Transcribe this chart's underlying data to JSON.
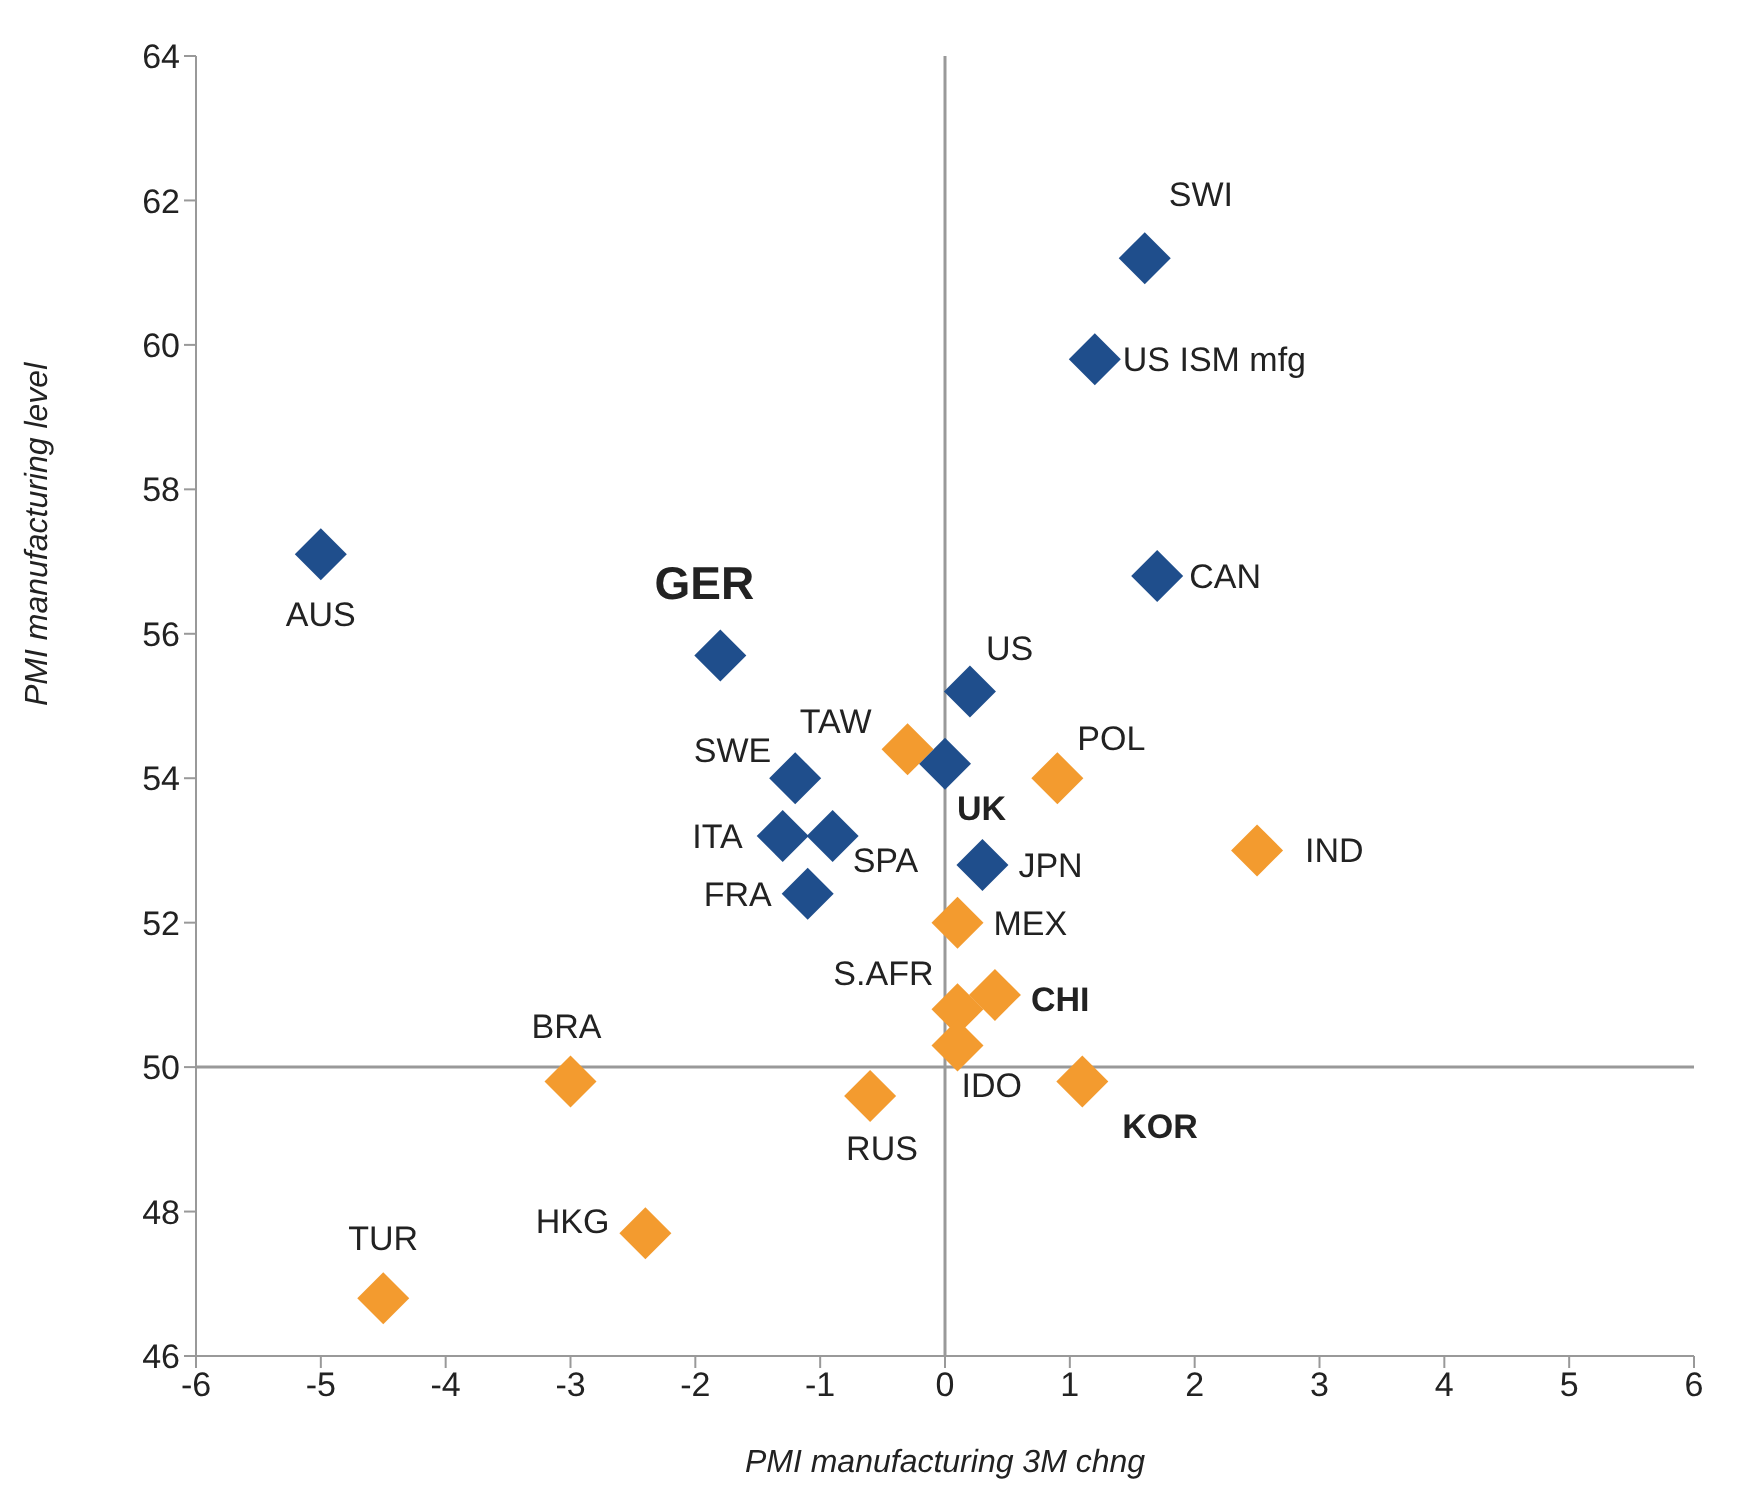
{
  "chart_data": {
    "type": "scatter",
    "xlabel": "PMI manufacturing 3M chng",
    "ylabel": "PMI manufacturing level",
    "xlim": [
      -6,
      6
    ],
    "xticks": [
      -6,
      -5,
      -4,
      -3,
      -2,
      -1,
      0,
      1,
      2,
      3,
      4,
      5,
      6
    ],
    "ylim": [
      46,
      64
    ],
    "yticks": [
      46,
      48,
      50,
      52,
      54,
      56,
      58,
      60,
      62,
      64
    ],
    "grid": false,
    "legend": false,
    "marker": "diamond",
    "series": [
      {
        "color": "#1f4e8c",
        "x": [
          1.6,
          1.2,
          1.7,
          -5.0,
          -1.8,
          0.2,
          0.0,
          -1.2,
          -0.9,
          -1.3,
          0.3,
          -1.1
        ],
        "values": [
          61.2,
          59.8,
          56.8,
          57.1,
          55.7,
          55.2,
          54.2,
          54.0,
          53.2,
          53.2,
          52.8,
          52.4
        ]
      },
      {
        "color": "#f39b2f",
        "x": [
          -0.3,
          0.9,
          2.5,
          0.1,
          0.1,
          0.4,
          0.1,
          1.1,
          -3.0,
          -0.6,
          -2.4,
          -4.5
        ],
        "values": [
          54.4,
          54.0,
          53.0,
          52.0,
          50.8,
          51.0,
          50.3,
          49.8,
          49.8,
          49.6,
          47.7,
          46.8
        ]
      }
    ],
    "ref_lines": [
      {
        "axis": "y",
        "value": 50
      },
      {
        "axis": "x",
        "value": 0
      }
    ],
    "annotations": [
      {
        "text": "SWI",
        "x": 1.6,
        "y": 61.2
      },
      {
        "text": "US ISM mfg",
        "x": 1.2,
        "y": 59.8
      },
      {
        "text": "CAN",
        "x": 1.7,
        "y": 56.8
      },
      {
        "text": "AUS",
        "x": -5.0,
        "y": 57.1
      },
      {
        "text": "GER",
        "x": -1.8,
        "y": 55.7
      },
      {
        "text": "US",
        "x": 0.2,
        "y": 55.2
      },
      {
        "text": "UK",
        "x": 0.0,
        "y": 54.2
      },
      {
        "text": "SWE",
        "x": -1.2,
        "y": 54.0
      },
      {
        "text": "SPA",
        "x": -0.9,
        "y": 53.2
      },
      {
        "text": "ITA",
        "x": -1.3,
        "y": 53.2
      },
      {
        "text": "JPN",
        "x": 0.3,
        "y": 52.8
      },
      {
        "text": "FRA",
        "x": -1.1,
        "y": 52.4
      },
      {
        "text": "TAW",
        "x": -0.3,
        "y": 54.4
      },
      {
        "text": "POL",
        "x": 0.9,
        "y": 54.0
      },
      {
        "text": "IND",
        "x": 2.5,
        "y": 53.0
      },
      {
        "text": "MEX",
        "x": 0.1,
        "y": 52.0
      },
      {
        "text": "S.AFR",
        "x": 0.1,
        "y": 50.8
      },
      {
        "text": "CHI",
        "x": 0.4,
        "y": 51.0
      },
      {
        "text": "IDO",
        "x": 0.1,
        "y": 50.3
      },
      {
        "text": "KOR",
        "x": 1.1,
        "y": 49.8
      },
      {
        "text": "BRA",
        "x": -3.0,
        "y": 49.8
      },
      {
        "text": "RUS",
        "x": -0.6,
        "y": 49.6
      },
      {
        "text": "HKG",
        "x": -2.4,
        "y": 47.7
      },
      {
        "text": "TUR",
        "x": -4.5,
        "y": 46.8
      }
    ]
  }
}
